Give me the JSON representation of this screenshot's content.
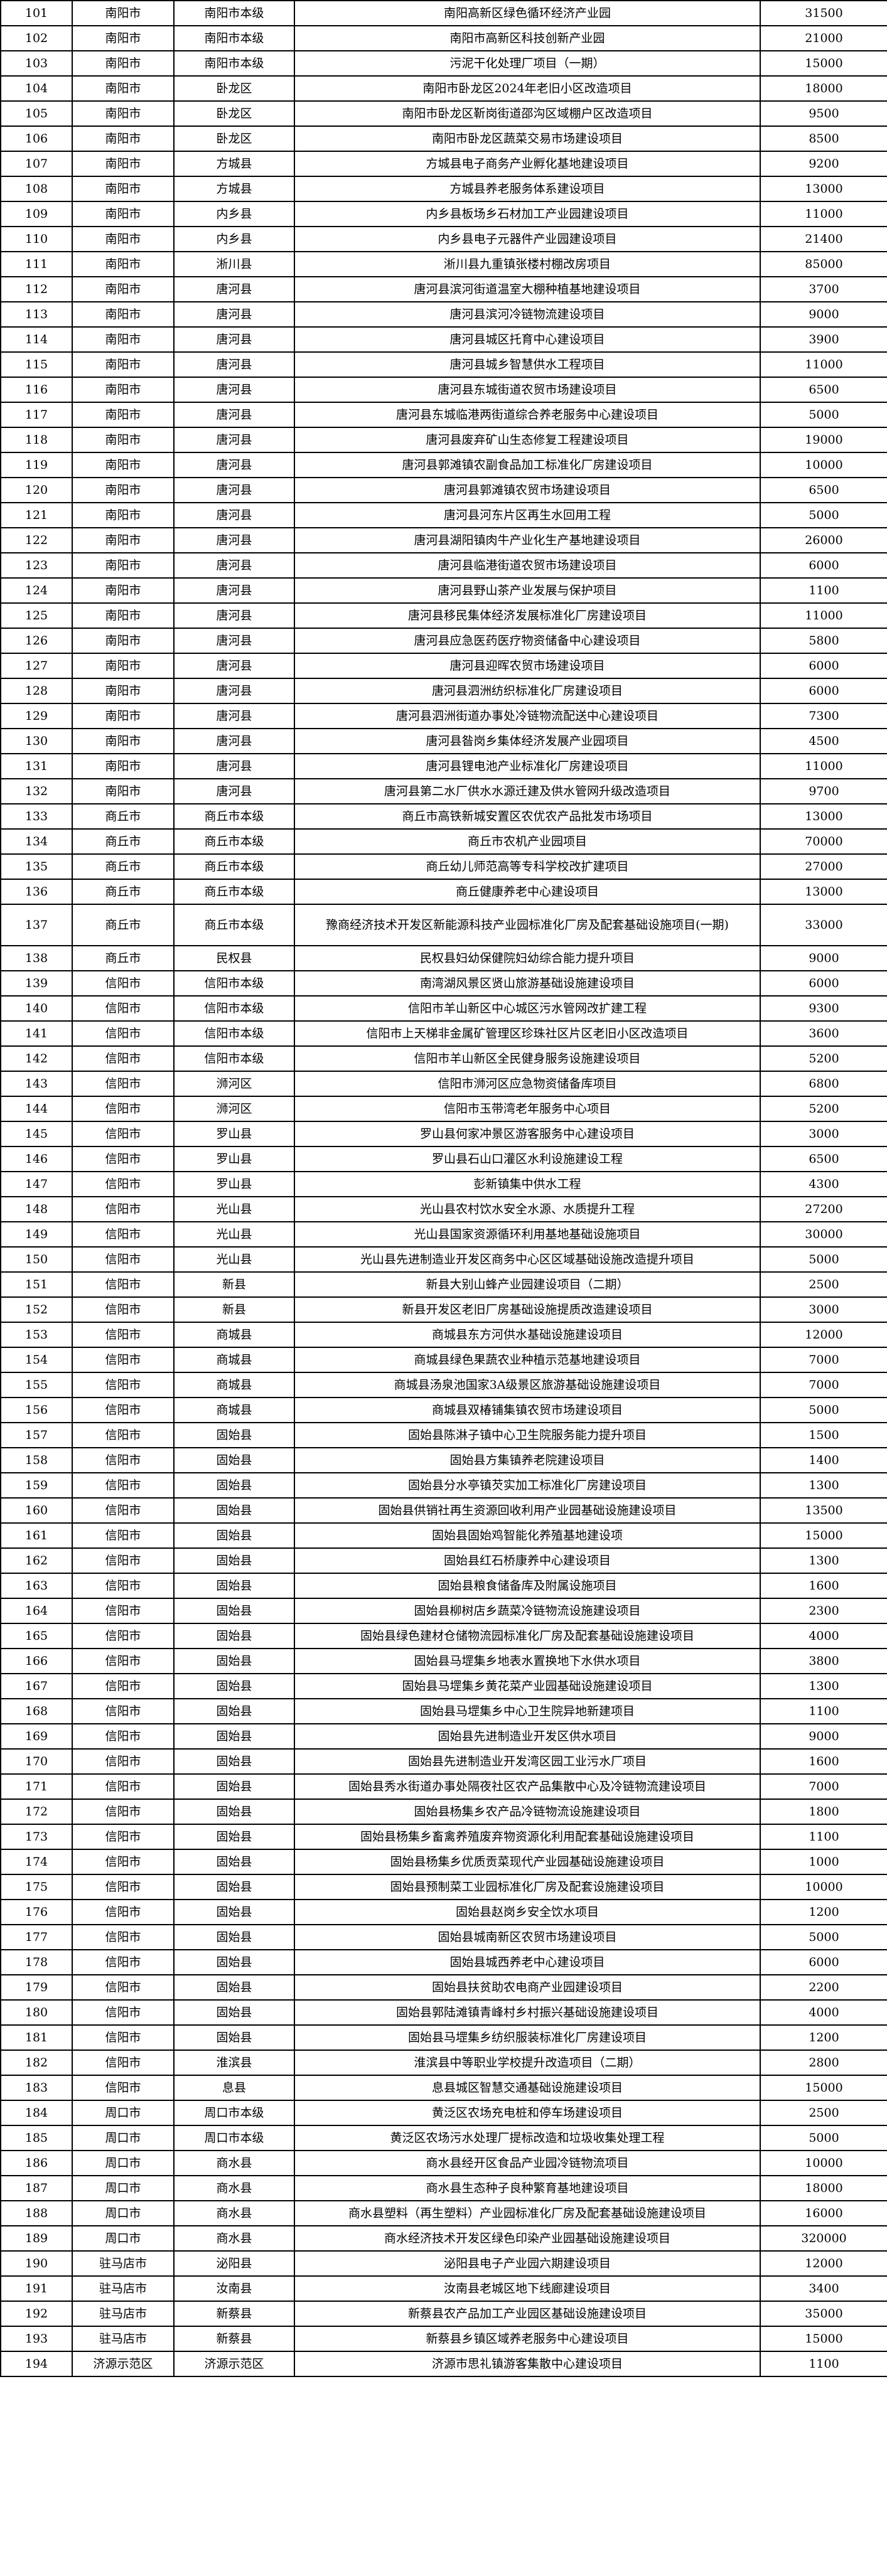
{
  "rows": [
    [
      "101",
      "南阳市",
      "南阳市本级",
      "南阳高新区绿色循环经济产业园",
      "31500"
    ],
    [
      "102",
      "南阳市",
      "南阳市本级",
      "南阳市高新区科技创新产业园",
      "21000"
    ],
    [
      "103",
      "南阳市",
      "南阳市本级",
      "污泥干化处理厂项目（一期）",
      "15000"
    ],
    [
      "104",
      "南阳市",
      "卧龙区",
      "南阳市卧龙区2024年老旧小区改造项目",
      "18000"
    ],
    [
      "105",
      "南阳市",
      "卧龙区",
      "南阳市卧龙区靳岗街道邵沟区域棚户区改造项目",
      "9500"
    ],
    [
      "106",
      "南阳市",
      "卧龙区",
      "南阳市卧龙区蔬菜交易市场建设项目",
      "8500"
    ],
    [
      "107",
      "南阳市",
      "方城县",
      "方城县电子商务产业孵化基地建设项目",
      "9200"
    ],
    [
      "108",
      "南阳市",
      "方城县",
      "方城县养老服务体系建设项目",
      "13000"
    ],
    [
      "109",
      "南阳市",
      "内乡县",
      "内乡县板场乡石材加工产业园建设项目",
      "11000"
    ],
    [
      "110",
      "南阳市",
      "内乡县",
      "内乡县电子元器件产业园建设项目",
      "21400"
    ],
    [
      "111",
      "南阳市",
      "淅川县",
      "淅川县九重镇张楼村棚改房项目",
      "85000"
    ],
    [
      "112",
      "南阳市",
      "唐河县",
      "唐河县滨河街道温室大棚种植基地建设项目",
      "3700"
    ],
    [
      "113",
      "南阳市",
      "唐河县",
      "唐河县滨河冷链物流建设项目",
      "9000"
    ],
    [
      "114",
      "南阳市",
      "唐河县",
      "唐河县城区托育中心建设项目",
      "3900"
    ],
    [
      "115",
      "南阳市",
      "唐河县",
      "唐河县城乡智慧供水工程项目",
      "11000"
    ],
    [
      "116",
      "南阳市",
      "唐河县",
      "唐河县东城街道农贸市场建设项目",
      "6500"
    ],
    [
      "117",
      "南阳市",
      "唐河县",
      "唐河县东城临港两街道综合养老服务中心建设项目",
      "5000"
    ],
    [
      "118",
      "南阳市",
      "唐河县",
      "唐河县废弃矿山生态修复工程建设项目",
      "19000"
    ],
    [
      "119",
      "南阳市",
      "唐河县",
      "唐河县郭滩镇农副食品加工标准化厂房建设项目",
      "10000"
    ],
    [
      "120",
      "南阳市",
      "唐河县",
      "唐河县郭滩镇农贸市场建设项目",
      "6500"
    ],
    [
      "121",
      "南阳市",
      "唐河县",
      "唐河县河东片区再生水回用工程",
      "5000"
    ],
    [
      "122",
      "南阳市",
      "唐河县",
      "唐河县湖阳镇肉牛产业化生产基地建设项目",
      "26000"
    ],
    [
      "123",
      "南阳市",
      "唐河县",
      "唐河县临港街道农贸市场建设项目",
      "6000"
    ],
    [
      "124",
      "南阳市",
      "唐河县",
      "唐河县野山茶产业发展与保护项目",
      "1100"
    ],
    [
      "125",
      "南阳市",
      "唐河县",
      "唐河县移民集体经济发展标准化厂房建设项目",
      "11000"
    ],
    [
      "126",
      "南阳市",
      "唐河县",
      "唐河县应急医药医疗物资储备中心建设项目",
      "5800"
    ],
    [
      "127",
      "南阳市",
      "唐河县",
      "唐河县迎晖农贸市场建设项目",
      "6000"
    ],
    [
      "128",
      "南阳市",
      "唐河县",
      "唐河县泗洲纺织标准化厂房建设项目",
      "6000"
    ],
    [
      "129",
      "南阳市",
      "唐河县",
      "唐河县泗洲街道办事处冷链物流配送中心建设项目",
      "7300"
    ],
    [
      "130",
      "南阳市",
      "唐河县",
      "唐河县昝岗乡集体经济发展产业园项目",
      "4500"
    ],
    [
      "131",
      "南阳市",
      "唐河县",
      "唐河县锂电池产业标准化厂房建设项目",
      "11000"
    ],
    [
      "132",
      "南阳市",
      "唐河县",
      "唐河县第二水厂供水水源迁建及供水管网升级改造项目",
      "9700"
    ],
    [
      "133",
      "商丘市",
      "商丘市本级",
      "商丘市高铁新城安置区农优农产品批发市场项目",
      "13000"
    ],
    [
      "134",
      "商丘市",
      "商丘市本级",
      "商丘市农机产业园项目",
      "70000"
    ],
    [
      "135",
      "商丘市",
      "商丘市本级",
      "商丘幼儿师范高等专科学校改扩建项目",
      "27000"
    ],
    [
      "136",
      "商丘市",
      "商丘市本级",
      "商丘健康养老中心建设项目",
      "13000"
    ],
    [
      "137",
      "商丘市",
      "商丘市本级",
      "豫商经济技术开发区新能源科技产业园标准化厂房及配套基础设施项目(一期)",
      "33000"
    ],
    [
      "138",
      "商丘市",
      "民权县",
      "民权县妇幼保健院妇幼综合能力提升项目",
      "9000"
    ],
    [
      "139",
      "信阳市",
      "信阳市本级",
      "南湾湖风景区贤山旅游基础设施建设项目",
      "6000"
    ],
    [
      "140",
      "信阳市",
      "信阳市本级",
      "信阳市羊山新区中心城区污水管网改扩建工程",
      "9300"
    ],
    [
      "141",
      "信阳市",
      "信阳市本级",
      "信阳市上天梯非金属矿管理区珍珠社区片区老旧小区改造项目",
      "3600"
    ],
    [
      "142",
      "信阳市",
      "信阳市本级",
      "信阳市羊山新区全民健身服务设施建设项目",
      "5200"
    ],
    [
      "143",
      "信阳市",
      "浉河区",
      "信阳市浉河区应急物资储备库项目",
      "6800"
    ],
    [
      "144",
      "信阳市",
      "浉河区",
      "信阳市玉带湾老年服务中心项目",
      "5200"
    ],
    [
      "145",
      "信阳市",
      "罗山县",
      "罗山县何家冲景区游客服务中心建设项目",
      "3000"
    ],
    [
      "146",
      "信阳市",
      "罗山县",
      "罗山县石山口灌区水利设施建设工程",
      "6500"
    ],
    [
      "147",
      "信阳市",
      "罗山县",
      "彭新镇集中供水工程",
      "4300"
    ],
    [
      "148",
      "信阳市",
      "光山县",
      "光山县农村饮水安全水源、水质提升工程",
      "27200"
    ],
    [
      "149",
      "信阳市",
      "光山县",
      "光山县国家资源循环利用基地基础设施项目",
      "30000"
    ],
    [
      "150",
      "信阳市",
      "光山县",
      "光山县先进制造业开发区商务中心区区域基础设施改造提升项目",
      "5000"
    ],
    [
      "151",
      "信阳市",
      "新县",
      "新县大别山蜂产业园建设项目（二期）",
      "2500"
    ],
    [
      "152",
      "信阳市",
      "新县",
      "新县开发区老旧厂房基础设施提质改造建设项目",
      "3000"
    ],
    [
      "153",
      "信阳市",
      "商城县",
      "商城县东方河供水基础设施建设项目",
      "12000"
    ],
    [
      "154",
      "信阳市",
      "商城县",
      "商城县绿色果蔬农业种植示范基地建设项目",
      "7000"
    ],
    [
      "155",
      "信阳市",
      "商城县",
      "商城县汤泉池国家3A级景区旅游基础设施建设项目",
      "7000"
    ],
    [
      "156",
      "信阳市",
      "商城县",
      "商城县双椿铺集镇农贸市场建设项目",
      "5000"
    ],
    [
      "157",
      "信阳市",
      "固始县",
      "固始县陈淋子镇中心卫生院服务能力提升项目",
      "1500"
    ],
    [
      "158",
      "信阳市",
      "固始县",
      "固始县方集镇养老院建设项目",
      "1400"
    ],
    [
      "159",
      "信阳市",
      "固始县",
      "固始县分水亭镇芡实加工标准化厂房建设项目",
      "1300"
    ],
    [
      "160",
      "信阳市",
      "固始县",
      "固始县供销社再生资源回收利用产业园基础设施建设项目",
      "13500"
    ],
    [
      "161",
      "信阳市",
      "固始县",
      "固始县固始鸡智能化养殖基地建设项",
      "15000"
    ],
    [
      "162",
      "信阳市",
      "固始县",
      "固始县红石桥康养中心建设项目",
      "1300"
    ],
    [
      "163",
      "信阳市",
      "固始县",
      "固始县粮食储备库及附属设施项目",
      "1600"
    ],
    [
      "164",
      "信阳市",
      "固始县",
      "固始县柳树店乡蔬菜冷链物流设施建设项目",
      "2300"
    ],
    [
      "165",
      "信阳市",
      "固始县",
      "固始县绿色建材仓储物流园标准化厂房及配套基础设施建设项目",
      "4000"
    ],
    [
      "166",
      "信阳市",
      "固始县",
      "固始县马堽集乡地表水置换地下水供水项目",
      "3800"
    ],
    [
      "167",
      "信阳市",
      "固始县",
      "固始县马堽集乡黄花菜产业园基础设施建设项目",
      "1300"
    ],
    [
      "168",
      "信阳市",
      "固始县",
      "固始县马堽集乡中心卫生院异地新建项目",
      "1100"
    ],
    [
      "169",
      "信阳市",
      "固始县",
      "固始县先进制造业开发区供水项目",
      "9000"
    ],
    [
      "170",
      "信阳市",
      "固始县",
      "固始县先进制造业开发湾区园工业污水厂项目",
      "1600"
    ],
    [
      "171",
      "信阳市",
      "固始县",
      "固始县秀水街道办事处隔夜社区农产品集散中心及冷链物流建设项目",
      "7000"
    ],
    [
      "172",
      "信阳市",
      "固始县",
      "固始县杨集乡农产品冷链物流设施建设项目",
      "1800"
    ],
    [
      "173",
      "信阳市",
      "固始县",
      "固始县杨集乡畜禽养殖废弃物资源化利用配套基础设施建设项目",
      "1100"
    ],
    [
      "174",
      "信阳市",
      "固始县",
      "固始县杨集乡优质贡菜现代产业园基础设施建设项目",
      "1000"
    ],
    [
      "175",
      "信阳市",
      "固始县",
      "固始县预制菜工业园标准化厂房及配套设施建设项目",
      "10000"
    ],
    [
      "176",
      "信阳市",
      "固始县",
      "固始县赵岗乡安全饮水项目",
      "1200"
    ],
    [
      "177",
      "信阳市",
      "固始县",
      "固始县城南新区农贸市场建设项目",
      "5000"
    ],
    [
      "178",
      "信阳市",
      "固始县",
      "固始县城西养老中心建设项目",
      "6000"
    ],
    [
      "179",
      "信阳市",
      "固始县",
      "固始县扶贫助农电商产业园建设项目",
      "2200"
    ],
    [
      "180",
      "信阳市",
      "固始县",
      "固始县郭陆滩镇青峰村乡村振兴基础设施建设项目",
      "4000"
    ],
    [
      "181",
      "信阳市",
      "固始县",
      "固始县马堽集乡纺织服装标准化厂房建设项目",
      "1200"
    ],
    [
      "182",
      "信阳市",
      "淮滨县",
      "淮滨县中等职业学校提升改造项目（二期）",
      "2800"
    ],
    [
      "183",
      "信阳市",
      "息县",
      "息县城区智慧交通基础设施建设项目",
      "15000"
    ],
    [
      "184",
      "周口市",
      "周口市本级",
      "黄泛区农场充电桩和停车场建设项目",
      "2500"
    ],
    [
      "185",
      "周口市",
      "周口市本级",
      "黄泛区农场污水处理厂提标改造和垃圾收集处理工程",
      "5000"
    ],
    [
      "186",
      "周口市",
      "商水县",
      "商水县经开区食品产业园冷链物流项目",
      "10000"
    ],
    [
      "187",
      "周口市",
      "商水县",
      "商水县生态种子良种繁育基地建设项目",
      "18000"
    ],
    [
      "188",
      "周口市",
      "商水县",
      "商水县塑料（再生塑料）产业园标准化厂房及配套基础设施建设项目",
      "16000"
    ],
    [
      "189",
      "周口市",
      "商水县",
      "商水经济技术开发区绿色印染产业园基础设施建设项目",
      "320000"
    ],
    [
      "190",
      "驻马店市",
      "泌阳县",
      "泌阳县电子产业园六期建设项目",
      "12000"
    ],
    [
      "191",
      "驻马店市",
      "汝南县",
      "汝南县老城区地下线廊建设项目",
      "3400"
    ],
    [
      "192",
      "驻马店市",
      "新蔡县",
      "新蔡县农产品加工产业园区基础设施建设项目",
      "35000"
    ],
    [
      "193",
      "驻马店市",
      "新蔡县",
      "新蔡县乡镇区域养老服务中心建设项目",
      "15000"
    ],
    [
      "194",
      "济源示范区",
      "济源示范区",
      "济源市思礼镇游客集散中心建设项目",
      "1100"
    ]
  ]
}
